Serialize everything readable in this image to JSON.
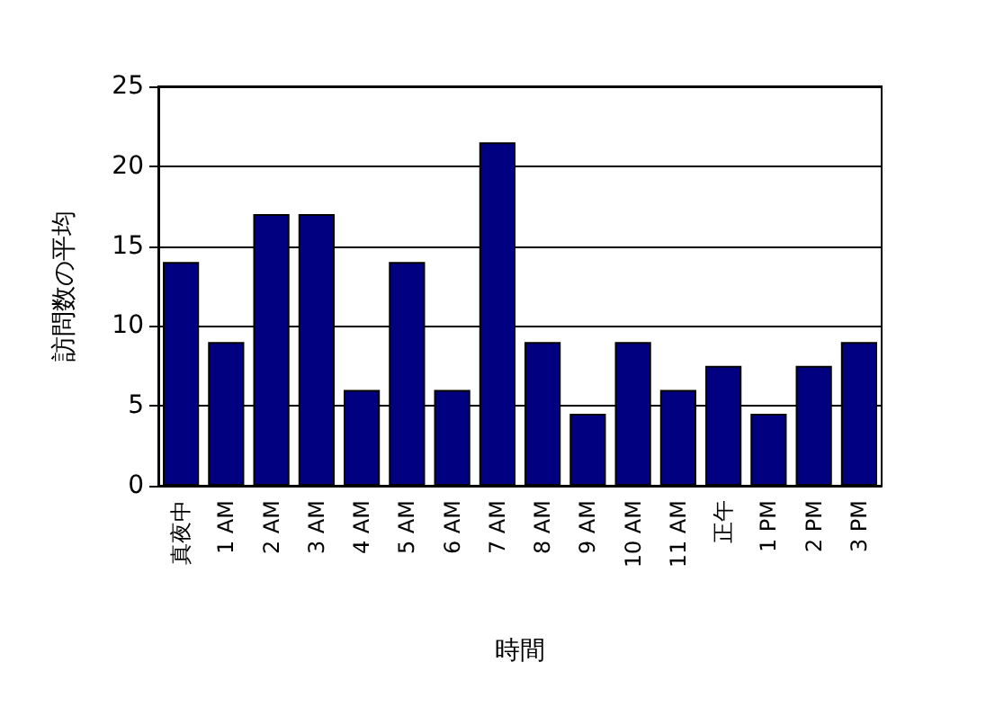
{
  "chart_data": {
    "type": "bar",
    "xlabel": "時間",
    "ylabel": "訪問数の平均",
    "categories": [
      "真夜中",
      "1 AM",
      "2 AM",
      "3 AM",
      "4 AM",
      "5 AM",
      "6 AM",
      "7 AM",
      "8 AM",
      "9 AM",
      "10 AM",
      "11 AM",
      "正午",
      "1 PM",
      "2 PM",
      "3 PM"
    ],
    "values": [
      14,
      9,
      17,
      17,
      6,
      14,
      6,
      21.5,
      9,
      4.5,
      9,
      6,
      7.5,
      4.5,
      7.5,
      9
    ],
    "color": "#000080",
    "ylim": [
      0,
      25
    ],
    "yticks": [
      0,
      5,
      10,
      15,
      20,
      25
    ],
    "grid": "y"
  }
}
